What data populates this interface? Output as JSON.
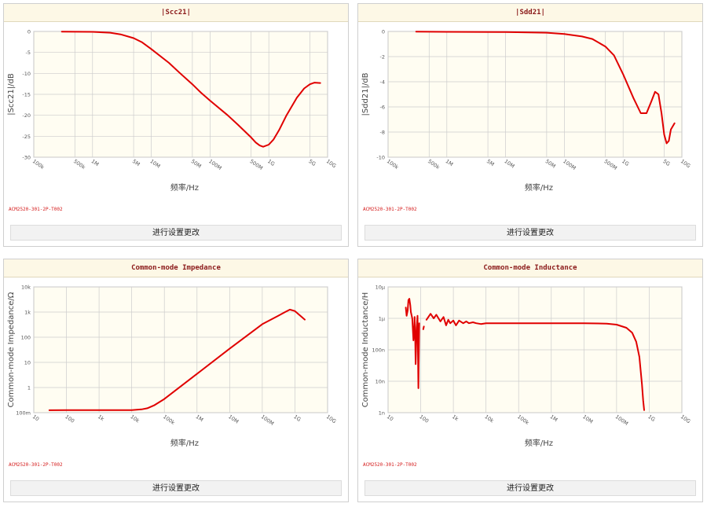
{
  "panels": [
    {
      "title": "|Scc21|",
      "part_number": "ACM2520-301-2P-T002",
      "edit_label": "进行设置更改"
    },
    {
      "title": "|Sdd21|",
      "part_number": "ACM2520-301-2P-T002",
      "edit_label": "进行设置更改"
    },
    {
      "title": "Common-mode Impedance",
      "part_number": "ACM2520-301-2P-T002",
      "edit_label": "进行设置更改"
    },
    {
      "title": "Common-mode Inductance",
      "part_number": "ACM2520-301-2P-T002",
      "edit_label": "进行设置更改"
    }
  ],
  "chart_data": [
    {
      "type": "line",
      "title": "|Scc21|",
      "xlabel": "频率/Hz",
      "ylabel": "|Scc21|/dB",
      "xscale": "log",
      "xlim": [
        100000,
        10000000000
      ],
      "ylim": [
        -30,
        0
      ],
      "grid": true,
      "line_color": "#e00000",
      "x_ticks": [
        {
          "v": 100000,
          "label": "100k"
        },
        {
          "v": 500000,
          "label": "500k"
        },
        {
          "v": 1000000,
          "label": "1M"
        },
        {
          "v": 5000000,
          "label": "5M"
        },
        {
          "v": 10000000,
          "label": "10M"
        },
        {
          "v": 50000000,
          "label": "50M"
        },
        {
          "v": 100000000,
          "label": "100M"
        },
        {
          "v": 500000000,
          "label": "500M"
        },
        {
          "v": 1000000000,
          "label": "1G"
        },
        {
          "v": 5000000000,
          "label": "5G"
        },
        {
          "v": 10000000000,
          "label": "10G"
        }
      ],
      "y_ticks": [
        {
          "v": 0,
          "label": "0"
        },
        {
          "v": -5,
          "label": "-5"
        },
        {
          "v": -10,
          "label": "-10"
        },
        {
          "v": -15,
          "label": "-15"
        },
        {
          "v": -20,
          "label": "-20"
        },
        {
          "v": -25,
          "label": "-25"
        },
        {
          "v": -30,
          "label": "-30"
        }
      ],
      "series": [
        {
          "x": [
            300000,
            1000000,
            2000000,
            3000000,
            5000000,
            7000000,
            10000000,
            20000000,
            30000000,
            50000000,
            70000000,
            100000000,
            200000000,
            300000000,
            500000000,
            600000000,
            700000000,
            800000000,
            1000000000,
            1200000000,
            1500000000,
            2000000000,
            3000000000,
            4000000000,
            5000000000,
            6000000000,
            7500000000
          ],
          "y": [
            -0.05,
            -0.1,
            -0.3,
            -0.7,
            -1.6,
            -2.6,
            -4.2,
            -7.5,
            -9.8,
            -12.6,
            -14.6,
            -16.5,
            -20.0,
            -22.3,
            -25.3,
            -26.5,
            -27.2,
            -27.5,
            -27.0,
            -25.8,
            -23.5,
            -20.0,
            -15.8,
            -13.6,
            -12.6,
            -12.2,
            -12.3
          ]
        }
      ]
    },
    {
      "type": "line",
      "title": "|Sdd21|",
      "xlabel": "频率/Hz",
      "ylabel": "|Sdd21|/dB",
      "xscale": "log",
      "xlim": [
        100000,
        10000000000
      ],
      "ylim": [
        -10,
        0
      ],
      "grid": true,
      "line_color": "#e00000",
      "x_ticks": [
        {
          "v": 100000,
          "label": "100k"
        },
        {
          "v": 500000,
          "label": "500k"
        },
        {
          "v": 1000000,
          "label": "1M"
        },
        {
          "v": 5000000,
          "label": "5M"
        },
        {
          "v": 10000000,
          "label": "10M"
        },
        {
          "v": 50000000,
          "label": "50M"
        },
        {
          "v": 100000000,
          "label": "100M"
        },
        {
          "v": 500000000,
          "label": "500M"
        },
        {
          "v": 1000000000,
          "label": "1G"
        },
        {
          "v": 5000000000,
          "label": "5G"
        },
        {
          "v": 10000000000,
          "label": "10G"
        }
      ],
      "y_ticks": [
        {
          "v": 0,
          "label": "0"
        },
        {
          "v": -2,
          "label": "-2"
        },
        {
          "v": -4,
          "label": "-4"
        },
        {
          "v": -6,
          "label": "-6"
        },
        {
          "v": -8,
          "label": "-8"
        },
        {
          "v": -10,
          "label": "-10"
        }
      ],
      "series": [
        {
          "x": [
            300000,
            1000000,
            10000000,
            50000000,
            100000000,
            200000000,
            300000000,
            500000000,
            700000000,
            1000000000,
            1500000000,
            2000000000,
            2500000000,
            3000000000,
            3500000000,
            4000000000,
            4500000000,
            5000000000,
            5500000000,
            6000000000,
            6500000000,
            7500000000
          ],
          "y": [
            -0.02,
            -0.03,
            -0.05,
            -0.1,
            -0.2,
            -0.4,
            -0.6,
            -1.2,
            -1.9,
            -3.4,
            -5.3,
            -6.5,
            -6.5,
            -5.6,
            -4.8,
            -5.0,
            -6.5,
            -8.2,
            -8.9,
            -8.7,
            -7.8,
            -7.3
          ]
        }
      ]
    },
    {
      "type": "line",
      "title": "Common-mode Impedance",
      "xlabel": "频率/Hz",
      "ylabel": "Common-mode Impedance/Ω",
      "xscale": "log",
      "yscale": "log",
      "xlim": [
        10,
        10000000000
      ],
      "ylim": [
        0.1,
        10000
      ],
      "grid": true,
      "line_color": "#e00000",
      "x_ticks": [
        {
          "v": 10,
          "label": "10"
        },
        {
          "v": 100,
          "label": "100"
        },
        {
          "v": 1000,
          "label": "1k"
        },
        {
          "v": 10000,
          "label": "10k"
        },
        {
          "v": 100000,
          "label": "100k"
        },
        {
          "v": 1000000,
          "label": "1M"
        },
        {
          "v": 10000000,
          "label": "10M"
        },
        {
          "v": 100000000,
          "label": "100M"
        },
        {
          "v": 1000000000,
          "label": "1G"
        },
        {
          "v": 10000000000,
          "label": "10G"
        }
      ],
      "y_ticks": [
        {
          "v": 0.1,
          "label": "100m"
        },
        {
          "v": 1,
          "label": "1"
        },
        {
          "v": 10,
          "label": "10"
        },
        {
          "v": 100,
          "label": "100"
        },
        {
          "v": 1000,
          "label": "1k"
        },
        {
          "v": 10000,
          "label": "10k"
        }
      ],
      "series": [
        {
          "x": [
            30,
            100,
            1000,
            10000,
            20000,
            30000,
            50000,
            100000,
            1000000,
            10000000,
            100000000,
            300000000,
            500000000,
            700000000,
            1000000000,
            2000000000
          ],
          "y": [
            0.125,
            0.126,
            0.126,
            0.127,
            0.135,
            0.15,
            0.2,
            0.35,
            3.5,
            35,
            330,
            700,
            1000,
            1250,
            1100,
            500
          ]
        }
      ]
    },
    {
      "type": "line",
      "title": "Common-mode Inductance",
      "xlabel": "频率/Hz",
      "ylabel": "Common-mode Inductance/H",
      "xscale": "log",
      "yscale": "log",
      "xlim": [
        10,
        10000000000
      ],
      "ylim": [
        1e-09,
        1e-05
      ],
      "grid": true,
      "line_color": "#e00000",
      "x_ticks": [
        {
          "v": 10,
          "label": "10"
        },
        {
          "v": 100,
          "label": "100"
        },
        {
          "v": 1000,
          "label": "1k"
        },
        {
          "v": 10000,
          "label": "10k"
        },
        {
          "v": 100000,
          "label": "100k"
        },
        {
          "v": 1000000,
          "label": "1M"
        },
        {
          "v": 10000000,
          "label": "10M"
        },
        {
          "v": 100000000,
          "label": "100M"
        },
        {
          "v": 1000000000,
          "label": "1G"
        },
        {
          "v": 10000000000,
          "label": "10G"
        }
      ],
      "y_ticks": [
        {
          "v": 1e-09,
          "label": "1n"
        },
        {
          "v": 1e-08,
          "label": "10n"
        },
        {
          "v": 1e-07,
          "label": "100n"
        },
        {
          "v": 1e-06,
          "label": "1μ"
        },
        {
          "v": 1e-05,
          "label": "10μ"
        }
      ],
      "series": [
        {
          "x": [
            35,
            37,
            40,
            42,
            45,
            48,
            50,
            55,
            60,
            63,
            65,
            68,
            70,
            75,
            80,
            85,
            90
          ],
          "y": [
            2.2e-06,
            1.2e-06,
            1.8e-06,
            3.8e-06,
            4.2e-06,
            2.6e-06,
            1.6e-06,
            1e-06,
            2e-07,
            4e-07,
            1.1e-06,
            2e-07,
            3.5e-08,
            5e-07,
            1.2e-06,
            6e-09,
            7e-07
          ]
        },
        {
          "x": [
            120,
            125
          ],
          "y": [
            4.5e-07,
            5.5e-07
          ]
        },
        {
          "x": [
            150,
            200,
            250,
            300,
            400,
            500,
            600,
            700,
            800,
            1000,
            1200,
            1500,
            2000,
            2500,
            3000,
            4000,
            5000,
            7000,
            10000,
            100000,
            1000000,
            10000000,
            50000000,
            100000000,
            200000000,
            300000000,
            400000000,
            500000000,
            600000000,
            650000000,
            700000000
          ],
          "y": [
            9e-07,
            1.4e-06,
            1e-06,
            1.3e-06,
            8e-07,
            1.1e-06,
            6e-07,
            9e-07,
            7e-07,
            8.5e-07,
            6e-07,
            8.5e-07,
            7e-07,
            8e-07,
            7e-07,
            7.5e-07,
            7e-07,
            6.6e-07,
            7e-07,
            7e-07,
            7e-07,
            7e-07,
            6.8e-07,
            6.3e-07,
            5e-07,
            3.5e-07,
            1.8e-07,
            6e-08,
            8e-09,
            2.5e-09,
            1.2e-09
          ]
        }
      ]
    }
  ]
}
